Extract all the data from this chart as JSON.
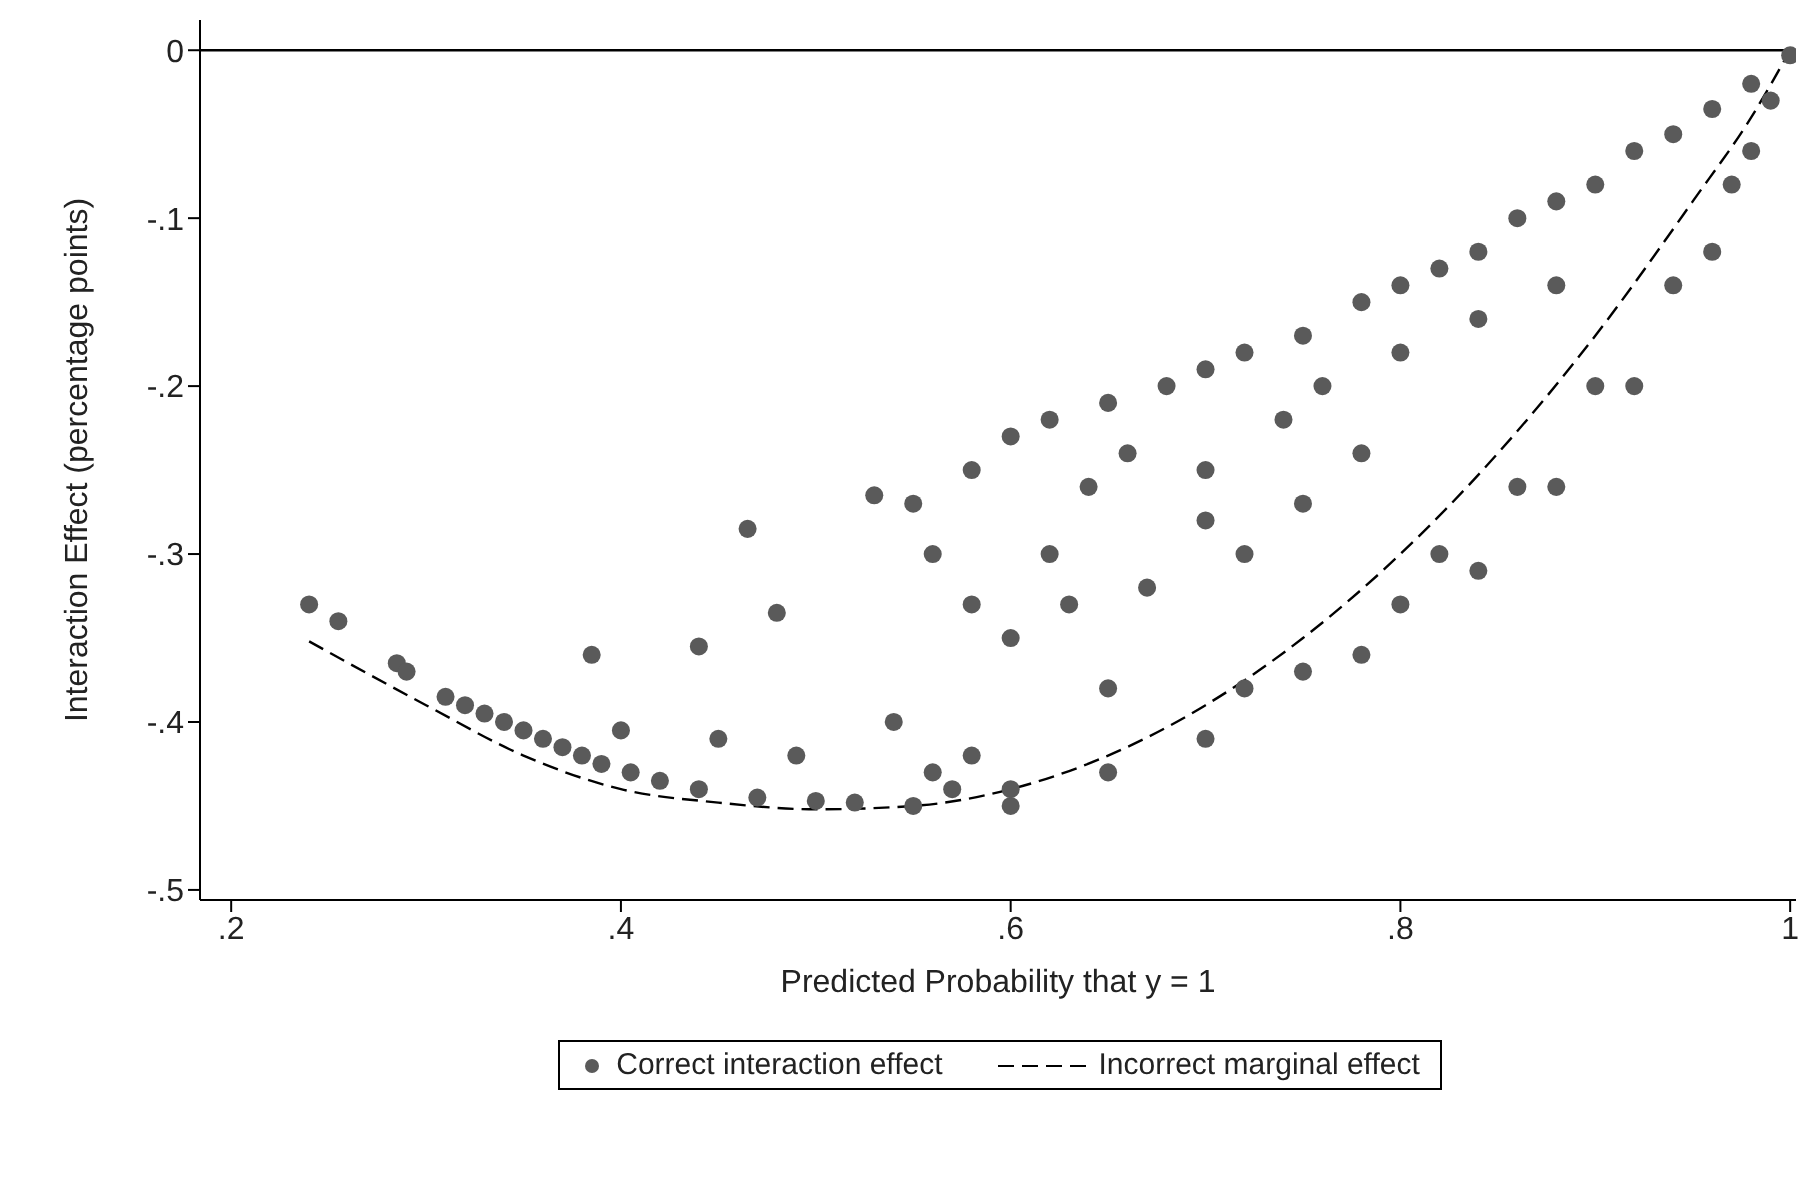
{
  "chart_data": {
    "type": "scatter",
    "xlabel": "Predicted Probability that y = 1",
    "ylabel": "Interaction Effect (percentage points)",
    "xlim": [
      0.184,
      1.003
    ],
    "xticks": [
      {
        "value": 0.2,
        "label": ".2"
      },
      {
        "value": 0.4,
        "label": ".4"
      },
      {
        "value": 0.6,
        "label": ".6"
      },
      {
        "value": 0.8,
        "label": ".8"
      },
      1
    ],
    "ylim": [
      -0.506,
      0.018
    ],
    "yticks": [
      0,
      {
        "value": -0.1,
        "label": "-.1"
      },
      {
        "value": -0.2,
        "label": "-.2"
      },
      {
        "value": -0.3,
        "label": "-.3"
      },
      {
        "value": -0.4,
        "label": "-.4"
      },
      {
        "value": -0.5,
        "label": "-.5"
      }
    ],
    "grid": false,
    "legend": "bottom",
    "ref_lines": [
      {
        "axis": "y",
        "value": 0,
        "color": "#000000"
      }
    ],
    "series": [
      {
        "name": "Correct interaction effect",
        "color": "#5a5a5a",
        "marker": "circle",
        "x": [
          0.24,
          0.255,
          0.285,
          0.29,
          0.31,
          0.32,
          0.33,
          0.34,
          0.35,
          0.36,
          0.37,
          0.38,
          0.385,
          0.39,
          0.4,
          0.405,
          0.42,
          0.44,
          0.44,
          0.45,
          0.465,
          0.47,
          0.48,
          0.49,
          0.5,
          0.52,
          0.53,
          0.54,
          0.55,
          0.55,
          0.56,
          0.57,
          0.58,
          0.6,
          0.6,
          0.62,
          0.62,
          0.64,
          0.65,
          0.66,
          0.68,
          0.7,
          0.7,
          0.72,
          0.72,
          0.74,
          0.75,
          0.76,
          0.78,
          0.78,
          0.8,
          0.8,
          0.82,
          0.84,
          0.84,
          0.86,
          0.88,
          0.88,
          0.9,
          0.92,
          0.94,
          0.96,
          0.98,
          1.0,
          0.6,
          0.65,
          0.7,
          0.72,
          0.75,
          0.78,
          0.8,
          0.82,
          0.84,
          0.86,
          0.88,
          0.9,
          0.92,
          0.94,
          0.96,
          0.97,
          0.98,
          0.99,
          0.58,
          0.6,
          0.63,
          0.67,
          0.7,
          0.75,
          0.56,
          0.58,
          0.65
        ],
        "values": [
          -0.33,
          -0.34,
          -0.365,
          -0.37,
          -0.385,
          -0.39,
          -0.395,
          -0.4,
          -0.405,
          -0.41,
          -0.415,
          -0.42,
          -0.36,
          -0.425,
          -0.405,
          -0.43,
          -0.435,
          -0.355,
          -0.44,
          -0.41,
          -0.285,
          -0.445,
          -0.335,
          -0.42,
          -0.447,
          -0.448,
          -0.265,
          -0.4,
          -0.27,
          -0.45,
          -0.3,
          -0.44,
          -0.25,
          -0.23,
          -0.45,
          -0.22,
          -0.3,
          -0.26,
          -0.21,
          -0.24,
          -0.2,
          -0.19,
          -0.25,
          -0.18,
          -0.3,
          -0.22,
          -0.17,
          -0.2,
          -0.15,
          -0.24,
          -0.14,
          -0.18,
          -0.13,
          -0.12,
          -0.16,
          -0.1,
          -0.09,
          -0.14,
          -0.08,
          -0.06,
          -0.05,
          -0.035,
          -0.02,
          -0.003,
          -0.44,
          -0.43,
          -0.41,
          -0.38,
          -0.37,
          -0.36,
          -0.33,
          -0.3,
          -0.31,
          -0.26,
          -0.26,
          -0.2,
          -0.2,
          -0.14,
          -0.12,
          -0.08,
          -0.06,
          -0.03,
          -0.33,
          -0.35,
          -0.33,
          -0.32,
          -0.28,
          -0.27,
          -0.43,
          -0.42,
          -0.38
        ]
      },
      {
        "name": "Incorrect marginal effect",
        "type": "line",
        "color": "#000000",
        "marker": "none",
        "line_style": "dashed",
        "x": [
          0.24,
          0.3,
          0.35,
          0.4,
          0.45,
          0.5,
          0.55,
          0.6,
          0.65,
          0.7,
          0.75,
          0.8,
          0.85,
          0.9,
          0.95,
          0.98,
          1.0
        ],
        "values": [
          -0.352,
          -0.39,
          -0.42,
          -0.44,
          -0.448,
          -0.452,
          -0.45,
          -0.44,
          -0.42,
          -0.39,
          -0.35,
          -0.3,
          -0.24,
          -0.17,
          -0.09,
          -0.04,
          0
        ]
      }
    ]
  }
}
